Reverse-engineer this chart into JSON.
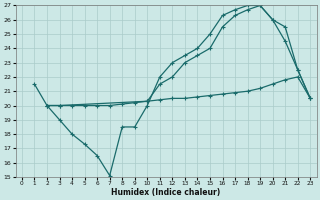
{
  "xlabel": "Humidex (Indice chaleur)",
  "bg_color": "#cce8e6",
  "grid_color": "#aaccca",
  "line_color": "#1a6b6b",
  "xlim": [
    -0.5,
    23.5
  ],
  "ylim": [
    15,
    27
  ],
  "xticks": [
    0,
    1,
    2,
    3,
    4,
    5,
    6,
    7,
    8,
    9,
    10,
    11,
    12,
    13,
    14,
    15,
    16,
    17,
    18,
    19,
    20,
    21,
    22,
    23
  ],
  "yticks": [
    15,
    16,
    17,
    18,
    19,
    20,
    21,
    22,
    23,
    24,
    25,
    26,
    27
  ],
  "line1_x": [
    1,
    2,
    3,
    4,
    5,
    6,
    7,
    8,
    9,
    10,
    11,
    12,
    13,
    14,
    15,
    16,
    17,
    18,
    19,
    20,
    21,
    22,
    23
  ],
  "line1_y": [
    21.5,
    20.0,
    19.0,
    18.0,
    17.3,
    16.5,
    15.1,
    18.5,
    18.5,
    20.0,
    22.0,
    23.0,
    23.5,
    24.0,
    25.0,
    26.3,
    26.7,
    27.0,
    27.0,
    26.0,
    24.5,
    22.5,
    20.5
  ],
  "line2_x": [
    2,
    3,
    10,
    11,
    12,
    13,
    14,
    15,
    16,
    17,
    18,
    19,
    20,
    21,
    22,
    23
  ],
  "line2_y": [
    20.0,
    20.0,
    20.3,
    21.5,
    22.0,
    23.0,
    23.5,
    24.0,
    25.5,
    26.3,
    26.7,
    27.0,
    26.0,
    25.5,
    22.5,
    20.5
  ],
  "line3_x": [
    2,
    3,
    4,
    5,
    6,
    7,
    8,
    9,
    10,
    11,
    12,
    13,
    14,
    15,
    16,
    17,
    18,
    19,
    20,
    21,
    22,
    23
  ],
  "line3_y": [
    20.0,
    20.0,
    20.0,
    20.0,
    20.0,
    20.0,
    20.1,
    20.2,
    20.3,
    20.4,
    20.5,
    20.5,
    20.6,
    20.7,
    20.8,
    20.9,
    21.0,
    21.2,
    21.5,
    21.8,
    22.0,
    20.5
  ]
}
